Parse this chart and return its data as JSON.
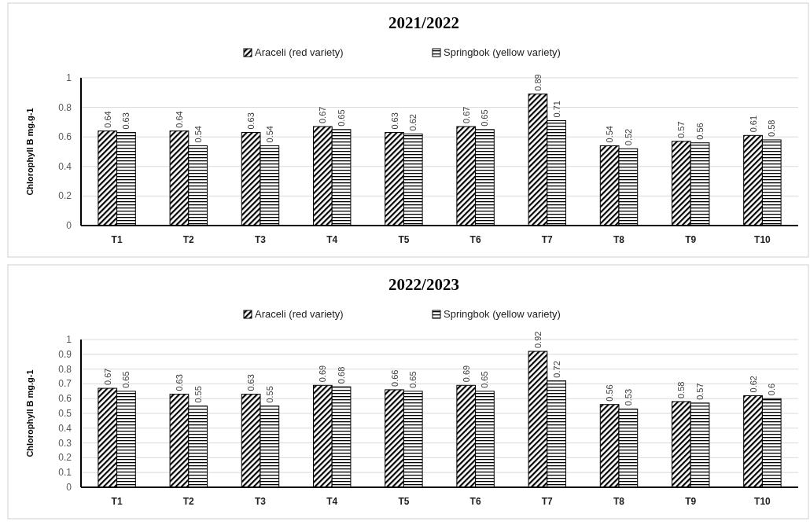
{
  "chart_data": [
    {
      "type": "bar",
      "title": "2021/2022",
      "ylabel": "Chlorophyll B mg.g-1",
      "categories": [
        "T1",
        "T2",
        "T3",
        "T4",
        "T5",
        "T6",
        "T7",
        "T8",
        "T9",
        "T10"
      ],
      "series": [
        {
          "name": "Araceli (red variety)",
          "color": "#000000",
          "values": [
            0.64,
            0.64,
            0.63,
            0.67,
            0.63,
            0.67,
            0.89,
            0.54,
            0.57,
            0.61
          ]
        },
        {
          "name": "Springbok (yellow variety)",
          "color": "#000000",
          "values": [
            0.63,
            0.54,
            0.54,
            0.65,
            0.62,
            0.65,
            0.71,
            0.52,
            0.56,
            0.58
          ]
        }
      ],
      "ylim": [
        0,
        1
      ],
      "yticks": [
        0,
        0.2,
        0.4,
        0.6,
        0.8,
        1
      ],
      "grid": "y",
      "legend": "top",
      "data_labels": true
    },
    {
      "type": "bar",
      "title": "2022/2023",
      "ylabel": "Chlorophyll B mg.g-1",
      "categories": [
        "T1",
        "T2",
        "T3",
        "T4",
        "T5",
        "T6",
        "T7",
        "T8",
        "T9",
        "T10"
      ],
      "series": [
        {
          "name": "Araceli (red variety)",
          "color": "#000000",
          "values": [
            0.67,
            0.63,
            0.63,
            0.69,
            0.66,
            0.69,
            0.92,
            0.56,
            0.58,
            0.62
          ]
        },
        {
          "name": "Springbok (yellow variety)",
          "color": "#000000",
          "values": [
            0.65,
            0.55,
            0.55,
            0.68,
            0.65,
            0.65,
            0.72,
            0.53,
            0.57,
            0.6
          ]
        }
      ],
      "ylim": [
        0,
        1
      ],
      "yticks": [
        0,
        0.1,
        0.2,
        0.3,
        0.4,
        0.5,
        0.6,
        0.7,
        0.8,
        0.9,
        1
      ],
      "grid": "y",
      "legend": "top",
      "data_labels": true
    }
  ]
}
